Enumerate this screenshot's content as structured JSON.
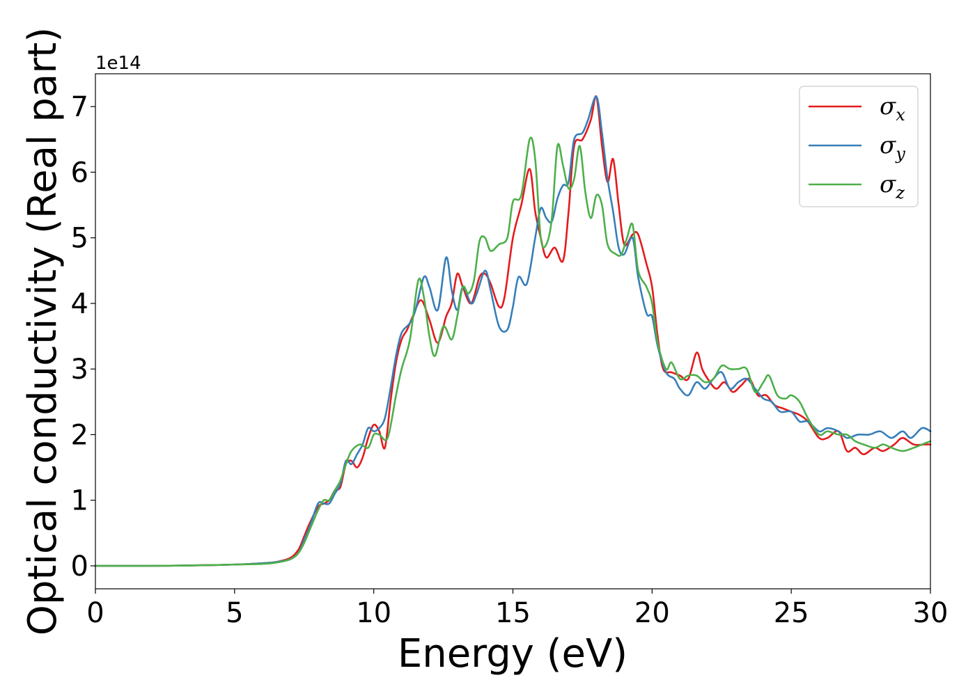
{
  "chart_data": {
    "type": "line",
    "xlabel": "Energy (eV)",
    "ylabel": "Optical conductivity (Real part)",
    "y_offset_label": "1e14",
    "xlim": [
      0,
      30
    ],
    "ylim": [
      -0.35,
      7.5
    ],
    "x_ticks": [
      0,
      5,
      10,
      15,
      20,
      25,
      30
    ],
    "y_ticks": [
      0,
      1,
      2,
      3,
      4,
      5,
      6,
      7
    ],
    "x_tick_labels": [
      "0",
      "5",
      "10",
      "15",
      "20",
      "25",
      "30"
    ],
    "y_tick_labels": [
      "0",
      "1",
      "2",
      "3",
      "4",
      "5",
      "6",
      "7"
    ],
    "grid": false,
    "legend_position": "top-right",
    "series": [
      {
        "name": "σx",
        "legend_symbol": "σ",
        "legend_subscript": "x",
        "color": "#e41a1c",
        "points": [
          [
            0,
            0
          ],
          [
            2,
            0
          ],
          [
            4,
            0.01
          ],
          [
            5,
            0.02
          ],
          [
            6,
            0.04
          ],
          [
            6.5,
            0.06
          ],
          [
            7,
            0.12
          ],
          [
            7.3,
            0.25
          ],
          [
            7.5,
            0.45
          ],
          [
            7.7,
            0.65
          ],
          [
            8,
            0.9
          ],
          [
            8.2,
            0.95
          ],
          [
            8.4,
            1.0
          ],
          [
            8.6,
            1.15
          ],
          [
            8.8,
            1.2
          ],
          [
            9,
            1.55
          ],
          [
            9.2,
            1.6
          ],
          [
            9.4,
            1.5
          ],
          [
            9.6,
            1.65
          ],
          [
            9.8,
            1.95
          ],
          [
            10,
            2.15
          ],
          [
            10.2,
            2.05
          ],
          [
            10.4,
            1.8
          ],
          [
            10.6,
            2.5
          ],
          [
            10.8,
            3.1
          ],
          [
            11,
            3.45
          ],
          [
            11.2,
            3.6
          ],
          [
            11.4,
            3.8
          ],
          [
            11.7,
            4.05
          ],
          [
            12,
            3.75
          ],
          [
            12.3,
            3.4
          ],
          [
            12.6,
            3.8
          ],
          [
            12.8,
            4.0
          ],
          [
            13,
            4.45
          ],
          [
            13.2,
            4.25
          ],
          [
            13.5,
            4.0
          ],
          [
            13.8,
            4.4
          ],
          [
            14,
            4.45
          ],
          [
            14.2,
            4.3
          ],
          [
            14.5,
            3.95
          ],
          [
            14.7,
            4.1
          ],
          [
            15,
            5.0
          ],
          [
            15.3,
            5.5
          ],
          [
            15.6,
            6.05
          ],
          [
            15.8,
            5.4
          ],
          [
            16,
            5.0
          ],
          [
            16.2,
            4.7
          ],
          [
            16.5,
            4.85
          ],
          [
            16.8,
            4.65
          ],
          [
            17,
            5.4
          ],
          [
            17.2,
            6.4
          ],
          [
            17.5,
            6.5
          ],
          [
            17.8,
            6.8
          ],
          [
            18,
            7.15
          ],
          [
            18.2,
            6.4
          ],
          [
            18.4,
            5.85
          ],
          [
            18.6,
            6.2
          ],
          [
            18.8,
            5.5
          ],
          [
            19,
            4.9
          ],
          [
            19.3,
            5.05
          ],
          [
            19.5,
            5.05
          ],
          [
            19.8,
            4.6
          ],
          [
            20,
            4.25
          ],
          [
            20.2,
            3.5
          ],
          [
            20.4,
            3.0
          ],
          [
            20.7,
            2.95
          ],
          [
            21,
            2.9
          ],
          [
            21.3,
            2.85
          ],
          [
            21.6,
            3.25
          ],
          [
            21.8,
            3.0
          ],
          [
            22,
            2.85
          ],
          [
            22.3,
            2.7
          ],
          [
            22.6,
            2.8
          ],
          [
            22.9,
            2.65
          ],
          [
            23.2,
            2.75
          ],
          [
            23.5,
            2.85
          ],
          [
            23.8,
            2.6
          ],
          [
            24.1,
            2.6
          ],
          [
            24.4,
            2.45
          ],
          [
            24.7,
            2.4
          ],
          [
            25,
            2.35
          ],
          [
            25.3,
            2.3
          ],
          [
            25.6,
            2.2
          ],
          [
            26,
            1.95
          ],
          [
            26.3,
            1.95
          ],
          [
            26.7,
            2.05
          ],
          [
            27,
            1.75
          ],
          [
            27.3,
            1.8
          ],
          [
            27.6,
            1.7
          ],
          [
            28,
            1.8
          ],
          [
            28.3,
            1.75
          ],
          [
            28.7,
            1.85
          ],
          [
            29,
            1.95
          ],
          [
            29.4,
            1.85
          ],
          [
            29.8,
            1.85
          ],
          [
            30,
            1.85
          ]
        ]
      },
      {
        "name": "σy",
        "legend_symbol": "σ",
        "legend_subscript": "y",
        "color": "#377eb8",
        "points": [
          [
            0,
            0
          ],
          [
            2,
            0
          ],
          [
            4,
            0.01
          ],
          [
            5,
            0.02
          ],
          [
            6,
            0.04
          ],
          [
            6.5,
            0.06
          ],
          [
            7,
            0.1
          ],
          [
            7.3,
            0.2
          ],
          [
            7.5,
            0.4
          ],
          [
            7.7,
            0.6
          ],
          [
            8,
            0.95
          ],
          [
            8.2,
            0.95
          ],
          [
            8.4,
            0.95
          ],
          [
            8.6,
            1.1
          ],
          [
            8.8,
            1.25
          ],
          [
            9,
            1.6
          ],
          [
            9.2,
            1.55
          ],
          [
            9.4,
            1.7
          ],
          [
            9.6,
            1.85
          ],
          [
            9.8,
            2.1
          ],
          [
            10,
            2.05
          ],
          [
            10.2,
            2.1
          ],
          [
            10.4,
            2.25
          ],
          [
            10.6,
            2.7
          ],
          [
            10.8,
            3.2
          ],
          [
            11,
            3.55
          ],
          [
            11.3,
            3.7
          ],
          [
            11.5,
            3.9
          ],
          [
            11.8,
            4.4
          ],
          [
            12,
            4.25
          ],
          [
            12.3,
            3.9
          ],
          [
            12.6,
            4.7
          ],
          [
            12.8,
            4.2
          ],
          [
            13,
            3.9
          ],
          [
            13.2,
            4.25
          ],
          [
            13.5,
            4.0
          ],
          [
            13.7,
            4.15
          ],
          [
            14,
            4.5
          ],
          [
            14.2,
            4.2
          ],
          [
            14.5,
            3.65
          ],
          [
            14.8,
            3.6
          ],
          [
            15,
            3.95
          ],
          [
            15.2,
            4.4
          ],
          [
            15.5,
            4.3
          ],
          [
            15.8,
            5.0
          ],
          [
            16,
            5.45
          ],
          [
            16.2,
            5.3
          ],
          [
            16.4,
            5.25
          ],
          [
            16.6,
            5.6
          ],
          [
            16.8,
            5.8
          ],
          [
            17,
            5.85
          ],
          [
            17.2,
            6.5
          ],
          [
            17.5,
            6.6
          ],
          [
            17.7,
            6.8
          ],
          [
            18,
            7.15
          ],
          [
            18.2,
            6.6
          ],
          [
            18.4,
            5.9
          ],
          [
            18.6,
            5.4
          ],
          [
            18.8,
            4.85
          ],
          [
            19,
            4.75
          ],
          [
            19.3,
            5.0
          ],
          [
            19.5,
            4.4
          ],
          [
            19.8,
            3.85
          ],
          [
            20,
            3.8
          ],
          [
            20.2,
            3.35
          ],
          [
            20.5,
            2.95
          ],
          [
            20.8,
            2.85
          ],
          [
            21,
            2.7
          ],
          [
            21.3,
            2.6
          ],
          [
            21.6,
            2.8
          ],
          [
            21.9,
            2.7
          ],
          [
            22.2,
            2.85
          ],
          [
            22.5,
            2.95
          ],
          [
            22.8,
            2.7
          ],
          [
            23.1,
            2.8
          ],
          [
            23.4,
            2.85
          ],
          [
            23.7,
            2.7
          ],
          [
            24,
            2.55
          ],
          [
            24.3,
            2.5
          ],
          [
            24.6,
            2.35
          ],
          [
            25,
            2.35
          ],
          [
            25.3,
            2.2
          ],
          [
            25.6,
            2.2
          ],
          [
            26,
            2.05
          ],
          [
            26.3,
            2.1
          ],
          [
            26.7,
            2.05
          ],
          [
            27,
            1.95
          ],
          [
            27.4,
            2.0
          ],
          [
            27.8,
            2.0
          ],
          [
            28.2,
            2.05
          ],
          [
            28.6,
            1.95
          ],
          [
            29,
            2.05
          ],
          [
            29.3,
            1.95
          ],
          [
            29.7,
            2.1
          ],
          [
            30,
            2.05
          ]
        ]
      },
      {
        "name": "σz",
        "legend_symbol": "σ",
        "legend_subscript": "z",
        "color": "#4daf4a",
        "points": [
          [
            0,
            0
          ],
          [
            2,
            0
          ],
          [
            4,
            0.01
          ],
          [
            5,
            0.02
          ],
          [
            6,
            0.03
          ],
          [
            6.5,
            0.05
          ],
          [
            7,
            0.1
          ],
          [
            7.3,
            0.2
          ],
          [
            7.5,
            0.35
          ],
          [
            7.7,
            0.55
          ],
          [
            8,
            0.85
          ],
          [
            8.2,
            1.0
          ],
          [
            8.4,
            1.0
          ],
          [
            8.6,
            1.15
          ],
          [
            8.8,
            1.3
          ],
          [
            9,
            1.55
          ],
          [
            9.2,
            1.75
          ],
          [
            9.5,
            1.85
          ],
          [
            9.8,
            1.8
          ],
          [
            10,
            2.0
          ],
          [
            10.2,
            2.0
          ],
          [
            10.5,
            1.95
          ],
          [
            10.8,
            2.6
          ],
          [
            11,
            3.0
          ],
          [
            11.3,
            3.45
          ],
          [
            11.6,
            4.35
          ],
          [
            11.8,
            4.1
          ],
          [
            12,
            3.5
          ],
          [
            12.2,
            3.2
          ],
          [
            12.5,
            3.65
          ],
          [
            12.8,
            3.45
          ],
          [
            13,
            3.8
          ],
          [
            13.2,
            4.25
          ],
          [
            13.4,
            4.15
          ],
          [
            13.6,
            4.35
          ],
          [
            13.8,
            4.95
          ],
          [
            14,
            5.0
          ],
          [
            14.2,
            4.8
          ],
          [
            14.5,
            4.9
          ],
          [
            14.8,
            5.0
          ],
          [
            15,
            5.55
          ],
          [
            15.3,
            5.65
          ],
          [
            15.6,
            6.5
          ],
          [
            15.8,
            6.2
          ],
          [
            16,
            5.0
          ],
          [
            16.2,
            4.9
          ],
          [
            16.4,
            5.3
          ],
          [
            16.6,
            6.4
          ],
          [
            16.8,
            6.1
          ],
          [
            17,
            5.75
          ],
          [
            17.2,
            5.9
          ],
          [
            17.4,
            6.4
          ],
          [
            17.6,
            5.7
          ],
          [
            17.8,
            5.3
          ],
          [
            18,
            5.65
          ],
          [
            18.2,
            5.5
          ],
          [
            18.4,
            4.9
          ],
          [
            18.7,
            4.75
          ],
          [
            18.9,
            4.75
          ],
          [
            19.1,
            5.0
          ],
          [
            19.3,
            5.2
          ],
          [
            19.5,
            4.5
          ],
          [
            19.8,
            4.25
          ],
          [
            20,
            4.0
          ],
          [
            20.2,
            3.4
          ],
          [
            20.5,
            3.0
          ],
          [
            20.7,
            3.1
          ],
          [
            21,
            2.85
          ],
          [
            21.3,
            2.9
          ],
          [
            21.6,
            2.9
          ],
          [
            21.9,
            2.8
          ],
          [
            22.2,
            2.85
          ],
          [
            22.5,
            3.05
          ],
          [
            22.8,
            3.0
          ],
          [
            23.1,
            3.0
          ],
          [
            23.4,
            3.0
          ],
          [
            23.7,
            2.65
          ],
          [
            24,
            2.8
          ],
          [
            24.2,
            2.9
          ],
          [
            24.5,
            2.6
          ],
          [
            24.8,
            2.55
          ],
          [
            25,
            2.6
          ],
          [
            25.3,
            2.5
          ],
          [
            25.6,
            2.25
          ],
          [
            26,
            2.0
          ],
          [
            26.3,
            2.05
          ],
          [
            26.7,
            2.0
          ],
          [
            27,
            2.0
          ],
          [
            27.3,
            1.9
          ],
          [
            27.6,
            1.85
          ],
          [
            28,
            1.8
          ],
          [
            28.3,
            1.85
          ],
          [
            28.6,
            1.8
          ],
          [
            29,
            1.75
          ],
          [
            29.4,
            1.8
          ],
          [
            29.7,
            1.85
          ],
          [
            30,
            1.9
          ]
        ]
      }
    ]
  }
}
